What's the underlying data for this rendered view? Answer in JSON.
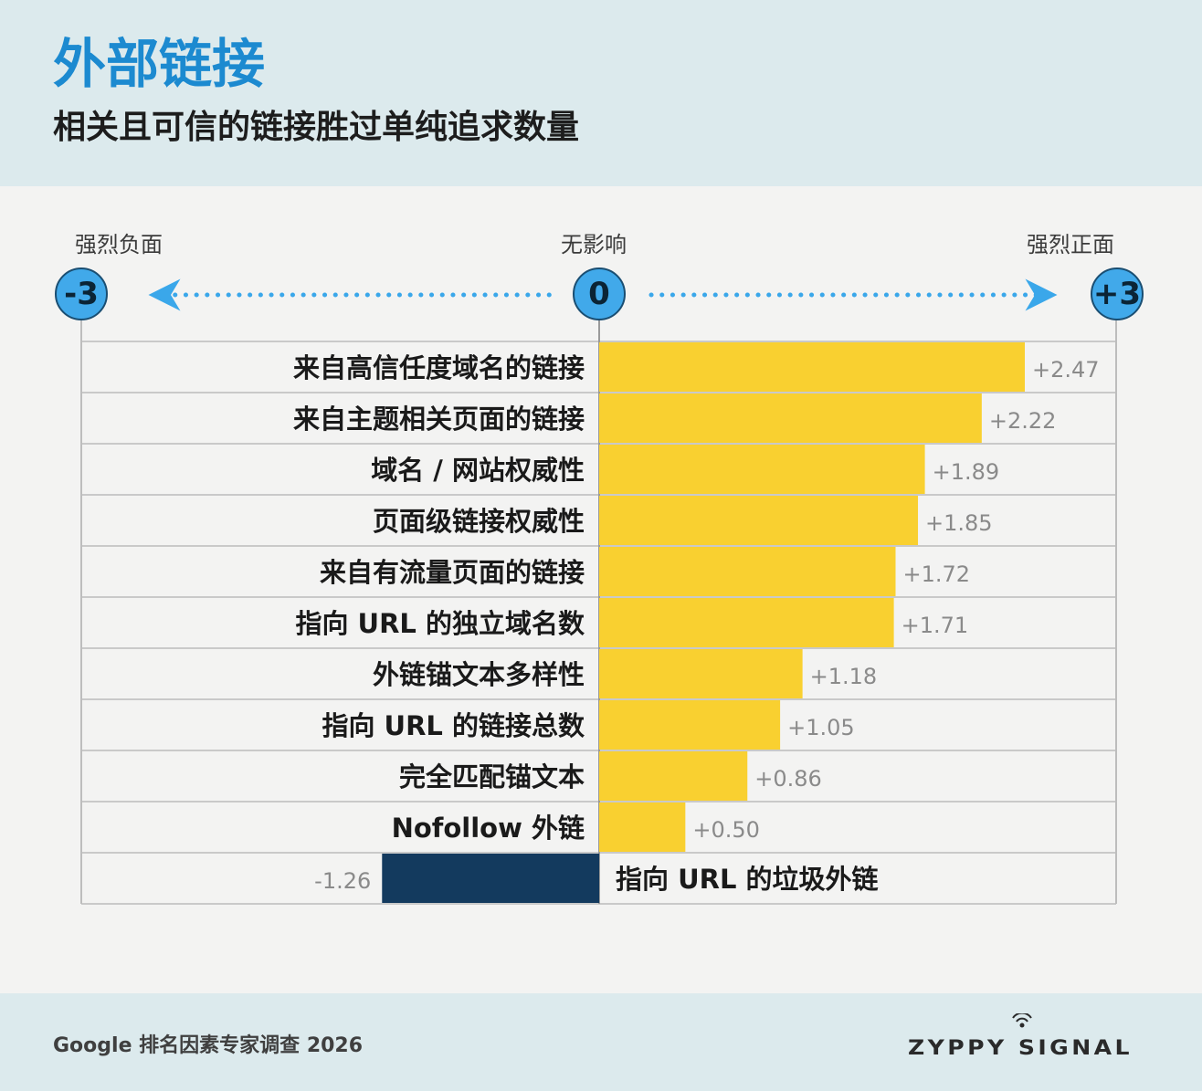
{
  "title": "外部链接",
  "subtitle": "相关且可信的链接胜过单纯追求数量",
  "scale": {
    "left_label": "强烈负面",
    "center_label": "无影响",
    "right_label": "强烈正面",
    "min_value": "-3",
    "zero_value": "0",
    "max_value": "+3"
  },
  "footer": {
    "source": "Google 排名因素专家调查 2026",
    "brand": "ZYPPY SIGNAL"
  },
  "colors": {
    "positive_bar": "#f9d030",
    "negative_bar": "#133a5e",
    "accent": "#1c8ad0"
  },
  "chart_data": {
    "type": "bar",
    "orientation": "horizontal",
    "xlim": [
      -3,
      3
    ],
    "categories": [
      "来自高信任度域名的链接",
      "来自主题相关页面的链接",
      "域名 / 网站权威性",
      "页面级链接权威性",
      "来自有流量页面的链接",
      "指向 URL 的独立域名数",
      "外链锚文本多样性",
      "指向 URL 的链接总数",
      "完全匹配锚文本",
      "Nofollow 外链",
      "指向 URL 的垃圾外链"
    ],
    "values": [
      2.47,
      2.22,
      1.89,
      1.85,
      1.72,
      1.71,
      1.18,
      1.05,
      0.86,
      0.5,
      -1.26
    ],
    "value_labels": [
      "+2.47",
      "+2.22",
      "+1.89",
      "+1.85",
      "+1.72",
      "+1.71",
      "+1.18",
      "+1.05",
      "+0.86",
      "+0.50",
      "-1.26"
    ]
  }
}
